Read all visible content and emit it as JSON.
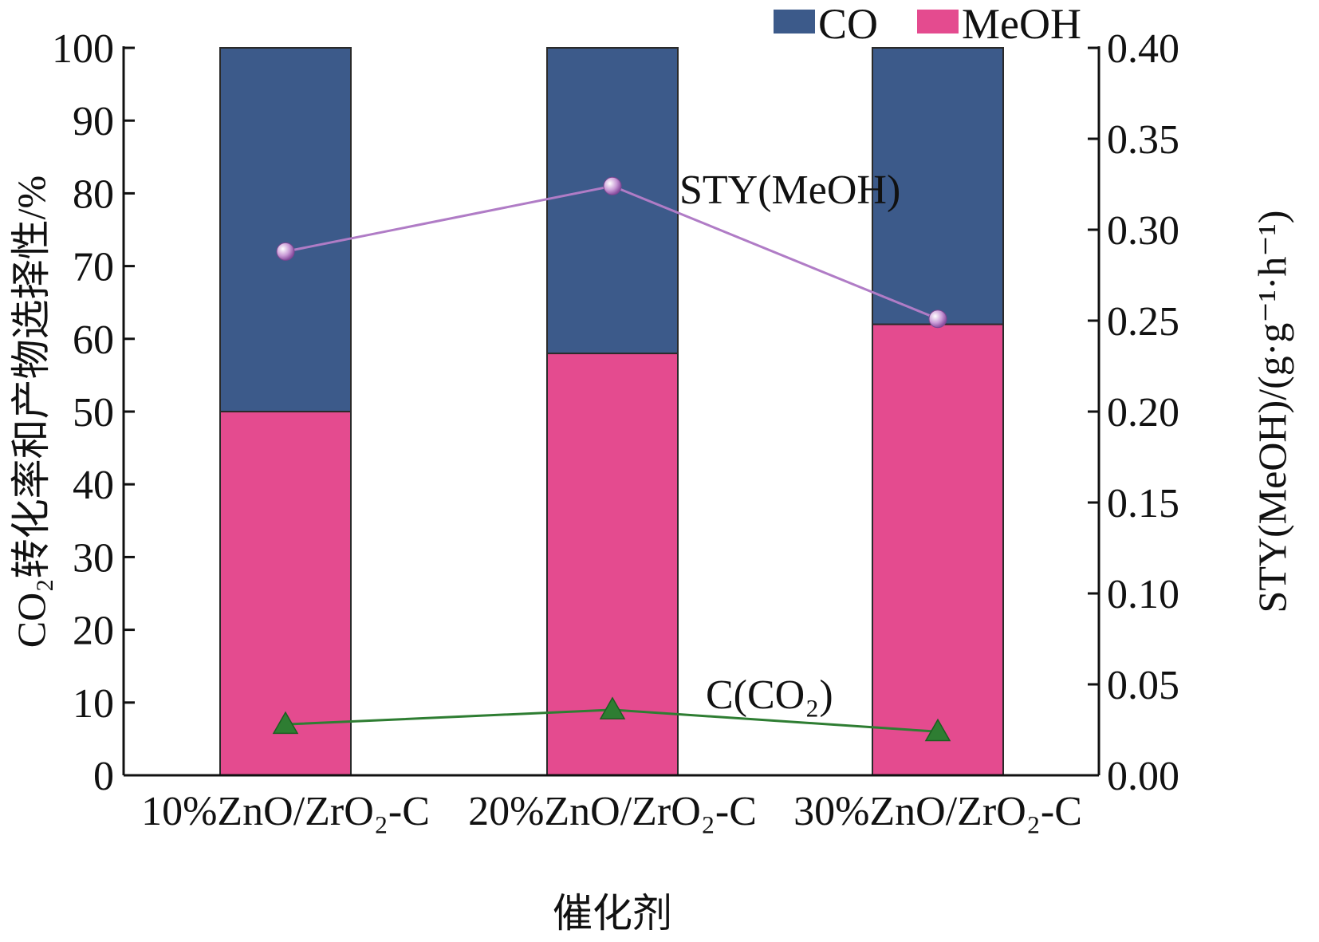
{
  "chart_data": {
    "type": "bar",
    "stacked": true,
    "categories": [
      "10%ZnO/ZrO₂-C",
      "20%ZnO/ZrO₂-C",
      "30%ZnO/ZrO₂-C"
    ],
    "series": [
      {
        "name": "MeOH",
        "kind": "bar",
        "axis": "left",
        "color": "#e44b8f",
        "values": [
          50,
          58,
          62
        ]
      },
      {
        "name": "CO",
        "kind": "bar",
        "axis": "left",
        "color": "#3c5a8a",
        "values": [
          50,
          42,
          38
        ]
      },
      {
        "name": "STY(MeOH)",
        "kind": "line",
        "axis": "right",
        "color": "#b07cc6",
        "marker": "sphere",
        "values": [
          0.288,
          0.324,
          0.251
        ]
      },
      {
        "name": "C(CO₂)",
        "kind": "line",
        "axis": "left",
        "color": "#2e7d32",
        "marker": "triangle",
        "values": [
          7.0,
          9.0,
          6.0
        ]
      }
    ],
    "xlabel": "催化剂",
    "ylabel": "CO₂转化率和产物选择性/%",
    "y2label": "STY(MeOH)/(g·g⁻¹·h⁻¹)",
    "ylim": [
      0,
      100
    ],
    "y2lim": [
      0,
      0.4
    ],
    "yticks": [
      "0",
      "10",
      "20",
      "30",
      "40",
      "50",
      "60",
      "70",
      "80",
      "90",
      "100"
    ],
    "y2ticks": [
      "0.00",
      "0.05",
      "0.10",
      "0.15",
      "0.20",
      "0.25",
      "0.30",
      "0.35",
      "0.40"
    ],
    "legend": [
      {
        "label": "CO",
        "color": "#3c5a8a"
      },
      {
        "label": "MeOH",
        "color": "#e44b8f"
      }
    ],
    "legend_position": "top-right",
    "annotations": [
      {
        "text": "STY(MeOH)",
        "series": "STY(MeOH)"
      },
      {
        "text": "C(CO₂)",
        "series": "C(CO₂)"
      }
    ],
    "grid": false
  }
}
